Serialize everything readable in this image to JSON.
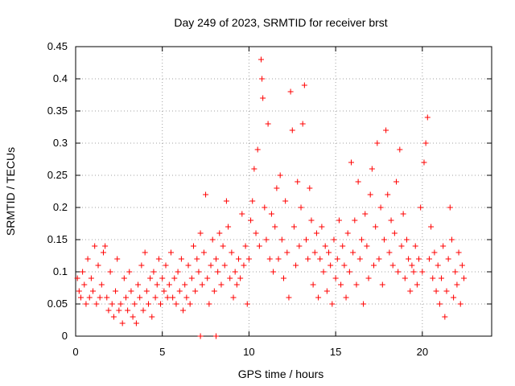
{
  "chart_data": {
    "type": "scatter",
    "title": "Day 249 of 2023, SRMTID for receiver brst",
    "xlabel": "GPS time / hours",
    "ylabel": "SRMTID / TECUs",
    "xlim": [
      0,
      24
    ],
    "ylim": [
      0,
      0.45
    ],
    "x_ticks": [
      0,
      5,
      10,
      15,
      20
    ],
    "x_tick_labels": [
      "0",
      "5",
      "10",
      "15",
      "20"
    ],
    "y_ticks": [
      0,
      0.05,
      0.1,
      0.15,
      0.2,
      0.25,
      0.3,
      0.35,
      0.4,
      0.45
    ],
    "y_tick_labels": [
      "0",
      "0.05",
      "0.1",
      "0.15",
      "0.2",
      "0.25",
      "0.3",
      "0.35",
      "0.4",
      "0.45"
    ],
    "grid": true,
    "marker": "+",
    "color": "#ff0000",
    "series": [
      {
        "name": "SRMTID",
        "points": [
          [
            0.1,
            0.09
          ],
          [
            0.2,
            0.07
          ],
          [
            0.3,
            0.06
          ],
          [
            0.4,
            0.1
          ],
          [
            0.5,
            0.08
          ],
          [
            0.6,
            0.05
          ],
          [
            0.7,
            0.12
          ],
          [
            0.8,
            0.06
          ],
          [
            0.9,
            0.09
          ],
          [
            1.0,
            0.07
          ],
          [
            1.1,
            0.14
          ],
          [
            1.2,
            0.05
          ],
          [
            1.3,
            0.11
          ],
          [
            1.4,
            0.06
          ],
          [
            1.5,
            0.08
          ],
          [
            1.6,
            0.13
          ],
          [
            1.7,
            0.14
          ],
          [
            1.8,
            0.06
          ],
          [
            1.9,
            0.04
          ],
          [
            2.0,
            0.1
          ],
          [
            2.1,
            0.05
          ],
          [
            2.2,
            0.03
          ],
          [
            2.3,
            0.07
          ],
          [
            2.4,
            0.12
          ],
          [
            2.5,
            0.04
          ],
          [
            2.6,
            0.05
          ],
          [
            2.7,
            0.02
          ],
          [
            2.8,
            0.09
          ],
          [
            2.9,
            0.06
          ],
          [
            3.0,
            0.04
          ],
          [
            3.1,
            0.1
          ],
          [
            3.2,
            0.07
          ],
          [
            3.3,
            0.03
          ],
          [
            3.4,
            0.05
          ],
          [
            3.5,
            0.02
          ],
          [
            3.6,
            0.08
          ],
          [
            3.7,
            0.06
          ],
          [
            3.8,
            0.11
          ],
          [
            3.9,
            0.04
          ],
          [
            4.0,
            0.13
          ],
          [
            4.1,
            0.07
          ],
          [
            4.2,
            0.05
          ],
          [
            4.3,
            0.09
          ],
          [
            4.4,
            0.03
          ],
          [
            4.5,
            0.1
          ],
          [
            4.6,
            0.06
          ],
          [
            4.7,
            0.08
          ],
          [
            4.8,
            0.12
          ],
          [
            4.9,
            0.05
          ],
          [
            5.0,
            0.09
          ],
          [
            5.1,
            0.07
          ],
          [
            5.2,
            0.11
          ],
          [
            5.3,
            0.06
          ],
          [
            5.4,
            0.08
          ],
          [
            5.5,
            0.13
          ],
          [
            5.6,
            0.06
          ],
          [
            5.7,
            0.09
          ],
          [
            5.8,
            0.05
          ],
          [
            5.9,
            0.1
          ],
          [
            6.0,
            0.07
          ],
          [
            6.1,
            0.12
          ],
          [
            6.2,
            0.04
          ],
          [
            6.3,
            0.08
          ],
          [
            6.4,
            0.06
          ],
          [
            6.5,
            0.11
          ],
          [
            6.6,
            0.05
          ],
          [
            6.7,
            0.09
          ],
          [
            6.8,
            0.14
          ],
          [
            6.9,
            0.07
          ],
          [
            7.0,
            0.12
          ],
          [
            7.1,
            0.1
          ],
          [
            7.2,
            0.16
          ],
          [
            7.3,
            0.08
          ],
          [
            7.4,
            0.13
          ],
          [
            7.5,
            0.22
          ],
          [
            7.6,
            0.09
          ],
          [
            7.7,
            0.05
          ],
          [
            7.8,
            0.11
          ],
          [
            7.9,
            0.15
          ],
          [
            8.0,
            0.07
          ],
          [
            8.1,
            0.12
          ],
          [
            8.2,
            0.1
          ],
          [
            8.3,
            0.16
          ],
          [
            8.4,
            0.08
          ],
          [
            8.5,
            0.14
          ],
          [
            8.6,
            0.11
          ],
          [
            8.7,
            0.21
          ],
          [
            8.8,
            0.17
          ],
          [
            8.9,
            0.09
          ],
          [
            9.0,
            0.13
          ],
          [
            9.1,
            0.06
          ],
          [
            9.2,
            0.1
          ],
          [
            9.3,
            0.08
          ],
          [
            9.4,
            0.12
          ],
          [
            9.5,
            0.09
          ],
          [
            9.6,
            0.19
          ],
          [
            9.7,
            0.11
          ],
          [
            9.8,
            0.14
          ],
          [
            9.9,
            0.05
          ],
          [
            10.0,
            0.12
          ],
          [
            10.1,
            0.18
          ],
          [
            10.2,
            0.21
          ],
          [
            10.3,
            0.26
          ],
          [
            10.4,
            0.16
          ],
          [
            10.5,
            0.29
          ],
          [
            10.6,
            0.14
          ],
          [
            10.7,
            0.43
          ],
          [
            10.75,
            0.4
          ],
          [
            10.8,
            0.37
          ],
          [
            10.9,
            0.2
          ],
          [
            11.0,
            0.15
          ],
          [
            11.1,
            0.33
          ],
          [
            11.2,
            0.12
          ],
          [
            11.3,
            0.19
          ],
          [
            11.4,
            0.1
          ],
          [
            11.5,
            0.17
          ],
          [
            11.6,
            0.23
          ],
          [
            11.7,
            0.12
          ],
          [
            11.8,
            0.25
          ],
          [
            11.9,
            0.15
          ],
          [
            12.0,
            0.09
          ],
          [
            12.1,
            0.21
          ],
          [
            12.2,
            0.13
          ],
          [
            12.3,
            0.06
          ],
          [
            12.4,
            0.38
          ],
          [
            12.5,
            0.32
          ],
          [
            12.6,
            0.17
          ],
          [
            12.7,
            0.11
          ],
          [
            12.8,
            0.24
          ],
          [
            12.9,
            0.14
          ],
          [
            13.0,
            0.2
          ],
          [
            13.1,
            0.33
          ],
          [
            13.2,
            0.39
          ],
          [
            13.3,
            0.15
          ],
          [
            13.4,
            0.12
          ],
          [
            13.5,
            0.23
          ],
          [
            13.6,
            0.18
          ],
          [
            13.7,
            0.08
          ],
          [
            13.8,
            0.13
          ],
          [
            13.9,
            0.16
          ],
          [
            14.0,
            0.06
          ],
          [
            14.1,
            0.12
          ],
          [
            14.2,
            0.17
          ],
          [
            14.3,
            0.1
          ],
          [
            14.4,
            0.14
          ],
          [
            14.5,
            0.07
          ],
          [
            14.6,
            0.13
          ],
          [
            14.7,
            0.11
          ],
          [
            14.8,
            0.05
          ],
          [
            14.9,
            0.15
          ],
          [
            15.0,
            0.09
          ],
          [
            15.1,
            0.12
          ],
          [
            15.2,
            0.18
          ],
          [
            15.3,
            0.08
          ],
          [
            15.4,
            0.14
          ],
          [
            15.5,
            0.11
          ],
          [
            15.6,
            0.06
          ],
          [
            15.7,
            0.16
          ],
          [
            15.8,
            0.1
          ],
          [
            15.9,
            0.27
          ],
          [
            16.0,
            0.13
          ],
          [
            16.1,
            0.18
          ],
          [
            16.2,
            0.08
          ],
          [
            16.3,
            0.24
          ],
          [
            16.4,
            0.12
          ],
          [
            16.5,
            0.15
          ],
          [
            16.6,
            0.05
          ],
          [
            16.7,
            0.19
          ],
          [
            16.8,
            0.14
          ],
          [
            16.9,
            0.09
          ],
          [
            17.0,
            0.22
          ],
          [
            17.1,
            0.26
          ],
          [
            17.2,
            0.11
          ],
          [
            17.3,
            0.17
          ],
          [
            17.4,
            0.3
          ],
          [
            17.5,
            0.12
          ],
          [
            17.6,
            0.2
          ],
          [
            17.7,
            0.08
          ],
          [
            17.8,
            0.15
          ],
          [
            17.9,
            0.32
          ],
          [
            18.0,
            0.22
          ],
          [
            18.1,
            0.13
          ],
          [
            18.2,
            0.18
          ],
          [
            18.3,
            0.11
          ],
          [
            18.4,
            0.16
          ],
          [
            18.5,
            0.24
          ],
          [
            18.6,
            0.1
          ],
          [
            18.7,
            0.29
          ],
          [
            18.8,
            0.14
          ],
          [
            18.9,
            0.19
          ],
          [
            19.0,
            0.09
          ],
          [
            19.1,
            0.15
          ],
          [
            19.2,
            0.12
          ],
          [
            19.3,
            0.07
          ],
          [
            19.4,
            0.11
          ],
          [
            19.5,
            0.1
          ],
          [
            19.6,
            0.14
          ],
          [
            19.7,
            0.08
          ],
          [
            19.8,
            0.12
          ],
          [
            19.9,
            0.2
          ],
          [
            20.0,
            0.1
          ],
          [
            20.1,
            0.27
          ],
          [
            20.2,
            0.3
          ],
          [
            20.3,
            0.34
          ],
          [
            20.4,
            0.12
          ],
          [
            20.5,
            0.17
          ],
          [
            20.6,
            0.09
          ],
          [
            20.7,
            0.13
          ],
          [
            20.8,
            0.07
          ],
          [
            20.9,
            0.11
          ],
          [
            21.0,
            0.05
          ],
          [
            21.1,
            0.09
          ],
          [
            21.2,
            0.14
          ],
          [
            21.3,
            0.03
          ],
          [
            21.4,
            0.07
          ],
          [
            21.5,
            0.12
          ],
          [
            21.6,
            0.2
          ],
          [
            21.7,
            0.15
          ],
          [
            21.8,
            0.06
          ],
          [
            21.9,
            0.1
          ],
          [
            22.0,
            0.08
          ],
          [
            22.1,
            0.13
          ],
          [
            22.2,
            0.05
          ],
          [
            22.3,
            0.11
          ],
          [
            22.4,
            0.09
          ],
          [
            7.2,
            0.0
          ],
          [
            8.1,
            0.0
          ]
        ]
      }
    ]
  }
}
